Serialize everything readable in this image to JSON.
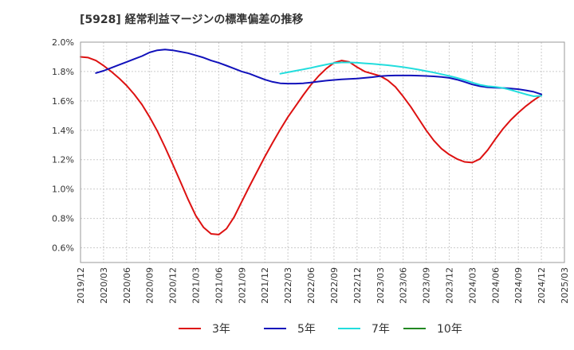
{
  "chart_data": {
    "type": "line",
    "title": "[5928]  経常利益マージンの標準偏差の推移",
    "xlabel": "",
    "ylabel": "",
    "ylim": [
      0.5,
      2.0
    ],
    "y_ticks": [
      0.6,
      0.8,
      1.0,
      1.2,
      1.4,
      1.6,
      1.8,
      2.0
    ],
    "y_tick_labels": [
      "0.6%",
      "0.8%",
      "1.0%",
      "1.2%",
      "1.4%",
      "1.6%",
      "1.8%",
      "2.0%"
    ],
    "x_ticks": [
      "2019/12",
      "2020/03",
      "2020/06",
      "2020/09",
      "2020/12",
      "2021/03",
      "2021/06",
      "2021/09",
      "2021/12",
      "2022/03",
      "2022/06",
      "2022/09",
      "2022/12",
      "2023/03",
      "2023/06",
      "2023/09",
      "2023/12",
      "2024/03",
      "2024/06",
      "2024/09",
      "2024/12",
      "2025/03"
    ],
    "grid": true,
    "legend_position": "bottom",
    "series": [
      {
        "name": "3年",
        "color": "#dd1111",
        "points": [
          [
            "2019/12",
            1.9
          ],
          [
            "2020/01",
            1.895
          ],
          [
            "2020/02",
            1.875
          ],
          [
            "2020/03",
            1.84
          ],
          [
            "2020/04",
            1.8
          ],
          [
            "2020/05",
            1.755
          ],
          [
            "2020/06",
            1.705
          ],
          [
            "2020/07",
            1.645
          ],
          [
            "2020/08",
            1.575
          ],
          [
            "2020/09",
            1.49
          ],
          [
            "2020/10",
            1.395
          ],
          [
            "2020/11",
            1.285
          ],
          [
            "2020/12",
            1.17
          ],
          [
            "2021/01",
            1.05
          ],
          [
            "2021/02",
            0.93
          ],
          [
            "2021/03",
            0.82
          ],
          [
            "2021/04",
            0.74
          ],
          [
            "2021/05",
            0.695
          ],
          [
            "2021/06",
            0.69
          ],
          [
            "2021/07",
            0.73
          ],
          [
            "2021/08",
            0.81
          ],
          [
            "2021/09",
            0.915
          ],
          [
            "2021/10",
            1.02
          ],
          [
            "2021/11",
            1.12
          ],
          [
            "2021/12",
            1.22
          ],
          [
            "2022/01",
            1.315
          ],
          [
            "2022/02",
            1.405
          ],
          [
            "2022/03",
            1.49
          ],
          [
            "2022/04",
            1.565
          ],
          [
            "2022/05",
            1.64
          ],
          [
            "2022/06",
            1.71
          ],
          [
            "2022/07",
            1.77
          ],
          [
            "2022/08",
            1.82
          ],
          [
            "2022/09",
            1.86
          ],
          [
            "2022/10",
            1.875
          ],
          [
            "2022/11",
            1.865
          ],
          [
            "2022/12",
            1.83
          ],
          [
            "2023/01",
            1.8
          ],
          [
            "2023/02",
            1.785
          ],
          [
            "2023/03",
            1.77
          ],
          [
            "2023/04",
            1.74
          ],
          [
            "2023/05",
            1.695
          ],
          [
            "2023/06",
            1.63
          ],
          [
            "2023/07",
            1.56
          ],
          [
            "2023/08",
            1.48
          ],
          [
            "2023/09",
            1.4
          ],
          [
            "2023/10",
            1.33
          ],
          [
            "2023/11",
            1.275
          ],
          [
            "2023/12",
            1.235
          ],
          [
            "2024/01",
            1.205
          ],
          [
            "2024/02",
            1.185
          ],
          [
            "2024/03",
            1.18
          ],
          [
            "2024/04",
            1.205
          ],
          [
            "2024/05",
            1.265
          ],
          [
            "2024/06",
            1.34
          ],
          [
            "2024/07",
            1.41
          ],
          [
            "2024/08",
            1.47
          ],
          [
            "2024/09",
            1.52
          ],
          [
            "2024/10",
            1.565
          ],
          [
            "2024/11",
            1.605
          ],
          [
            "2024/12",
            1.64
          ]
        ]
      },
      {
        "name": "5年",
        "color": "#1111bb",
        "points": [
          [
            "2020/02",
            1.79
          ],
          [
            "2020/03",
            1.805
          ],
          [
            "2020/04",
            1.825
          ],
          [
            "2020/05",
            1.845
          ],
          [
            "2020/06",
            1.865
          ],
          [
            "2020/07",
            1.885
          ],
          [
            "2020/08",
            1.905
          ],
          [
            "2020/09",
            1.93
          ],
          [
            "2020/10",
            1.945
          ],
          [
            "2020/11",
            1.95
          ],
          [
            "2020/12",
            1.945
          ],
          [
            "2021/01",
            1.935
          ],
          [
            "2021/02",
            1.925
          ],
          [
            "2021/03",
            1.91
          ],
          [
            "2021/04",
            1.895
          ],
          [
            "2021/05",
            1.875
          ],
          [
            "2021/06",
            1.86
          ],
          [
            "2021/07",
            1.84
          ],
          [
            "2021/08",
            1.82
          ],
          [
            "2021/09",
            1.8
          ],
          [
            "2021/10",
            1.785
          ],
          [
            "2021/11",
            1.765
          ],
          [
            "2021/12",
            1.745
          ],
          [
            "2022/01",
            1.73
          ],
          [
            "2022/02",
            1.72
          ],
          [
            "2022/03",
            1.718
          ],
          [
            "2022/04",
            1.718
          ],
          [
            "2022/05",
            1.72
          ],
          [
            "2022/06",
            1.725
          ],
          [
            "2022/07",
            1.732
          ],
          [
            "2022/08",
            1.738
          ],
          [
            "2022/09",
            1.743
          ],
          [
            "2022/10",
            1.747
          ],
          [
            "2022/11",
            1.75
          ],
          [
            "2022/12",
            1.752
          ],
          [
            "2023/01",
            1.757
          ],
          [
            "2023/02",
            1.762
          ],
          [
            "2023/03",
            1.768
          ],
          [
            "2023/04",
            1.772
          ],
          [
            "2023/05",
            1.773
          ],
          [
            "2023/06",
            1.773
          ],
          [
            "2023/07",
            1.773
          ],
          [
            "2023/08",
            1.772
          ],
          [
            "2023/09",
            1.77
          ],
          [
            "2023/10",
            1.767
          ],
          [
            "2023/11",
            1.763
          ],
          [
            "2023/12",
            1.757
          ],
          [
            "2024/01",
            1.745
          ],
          [
            "2024/02",
            1.73
          ],
          [
            "2024/03",
            1.712
          ],
          [
            "2024/04",
            1.7
          ],
          [
            "2024/05",
            1.693
          ],
          [
            "2024/06",
            1.69
          ],
          [
            "2024/07",
            1.688
          ],
          [
            "2024/08",
            1.685
          ],
          [
            "2024/09",
            1.68
          ],
          [
            "2024/10",
            1.672
          ],
          [
            "2024/11",
            1.662
          ],
          [
            "2024/12",
            1.645
          ]
        ]
      },
      {
        "name": "7年",
        "color": "#22dddd",
        "points": [
          [
            "2022/02",
            1.785
          ],
          [
            "2022/03",
            1.795
          ],
          [
            "2022/04",
            1.805
          ],
          [
            "2022/05",
            1.815
          ],
          [
            "2022/06",
            1.825
          ],
          [
            "2022/07",
            1.837
          ],
          [
            "2022/08",
            1.848
          ],
          [
            "2022/09",
            1.858
          ],
          [
            "2022/10",
            1.862
          ],
          [
            "2022/11",
            1.862
          ],
          [
            "2022/12",
            1.86
          ],
          [
            "2023/01",
            1.856
          ],
          [
            "2023/02",
            1.852
          ],
          [
            "2023/03",
            1.848
          ],
          [
            "2023/04",
            1.843
          ],
          [
            "2023/05",
            1.837
          ],
          [
            "2023/06",
            1.83
          ],
          [
            "2023/07",
            1.822
          ],
          [
            "2023/08",
            1.813
          ],
          [
            "2023/09",
            1.803
          ],
          [
            "2023/10",
            1.793
          ],
          [
            "2023/11",
            1.782
          ],
          [
            "2023/12",
            1.77
          ],
          [
            "2024/01",
            1.757
          ],
          [
            "2024/02",
            1.742
          ],
          [
            "2024/03",
            1.725
          ],
          [
            "2024/04",
            1.71
          ],
          [
            "2024/05",
            1.7
          ],
          [
            "2024/06",
            1.695
          ],
          [
            "2024/07",
            1.688
          ],
          [
            "2024/08",
            1.675
          ],
          [
            "2024/09",
            1.66
          ],
          [
            "2024/10",
            1.645
          ],
          [
            "2024/11",
            1.632
          ],
          [
            "2024/12",
            1.635
          ]
        ]
      },
      {
        "name": "10年",
        "color": "#228822",
        "points": []
      }
    ]
  }
}
